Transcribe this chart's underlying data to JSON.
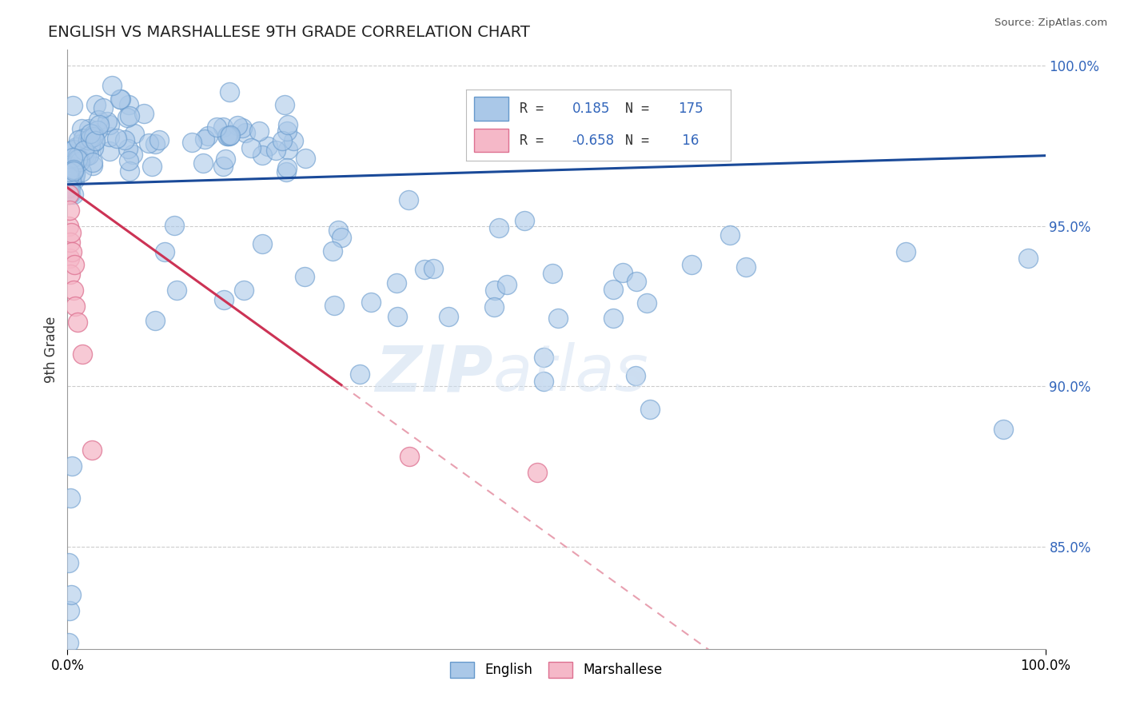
{
  "title": "ENGLISH VS MARSHALLESE 9TH GRADE CORRELATION CHART",
  "source": "Source: ZipAtlas.com",
  "ylabel": "9th Grade",
  "ytick_values": [
    0.85,
    0.9,
    0.95,
    1.0
  ],
  "english_color": "#aac8e8",
  "english_edge": "#6699cc",
  "marshallese_color": "#f5b8c8",
  "marshallese_edge": "#dd7090",
  "trend_english_color": "#1a4a99",
  "trend_marshallese_color": "#cc3355",
  "trend_marshallese_dash_color": "#e8a0b0",
  "xlim": [
    0.0,
    1.0
  ],
  "ylim": [
    0.818,
    1.005
  ],
  "figsize": [
    14.06,
    8.92
  ],
  "dpi": 100,
  "trend_english_y0": 0.963,
  "trend_english_y1": 0.972,
  "trend_marshallese_y0": 0.962,
  "trend_marshallese_x_solid_end": 0.28,
  "trend_marshallese_slope": -0.22
}
